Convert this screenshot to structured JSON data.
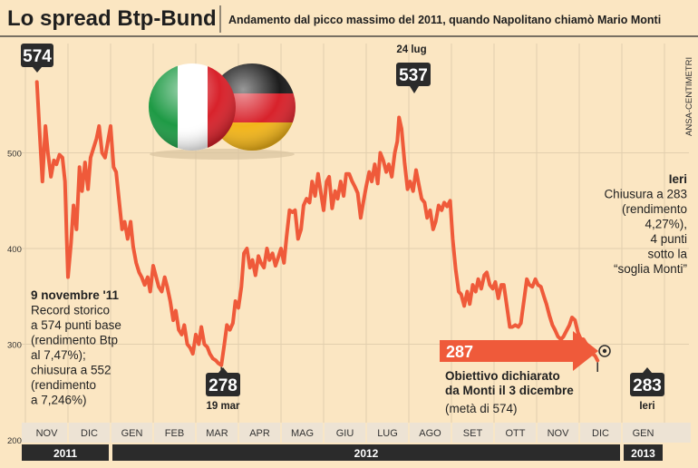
{
  "header": {
    "title": "Lo spread Btp-Bund",
    "subtitle": "Andamento dal picco massimo del 2011, quando Napolitano chiamò Mario Monti",
    "credit": "ANSA-CENTIMETRI"
  },
  "colors": {
    "background": "#fbe6c2",
    "line": "#ef5a3a",
    "dark": "#2b2b2b",
    "axis_band": "#ede3d4",
    "grid": "#e2cfae",
    "arrow": "#ef5a3a",
    "flag_italy_green": "#1e9a45",
    "flag_italy_white": "#ffffff",
    "flag_italy_red": "#d8222b",
    "flag_germany_black": "#1c1c1c",
    "flag_germany_red": "#d8222b",
    "flag_germany_gold": "#f2b51a"
  },
  "callouts": {
    "peak_value": "574",
    "july_date": "24 lug",
    "july_value": "537",
    "march_value": "278",
    "march_date": "19 mar",
    "target_value": "287",
    "last_value": "283",
    "last_label": "Ieri"
  },
  "annotations": {
    "nov9": {
      "heading": "9 novembre '11",
      "lines": [
        "Record storico",
        "a 574 punti base",
        "(rendimento Btp",
        "al 7,47%);",
        "chiusura a 552",
        "(rendimento",
        "a 7,246%)"
      ]
    },
    "ieri": {
      "heading": "Ieri",
      "lines": [
        "Chiusura a 283",
        "(rendimento",
        "4,27%),",
        "4 punti",
        "sotto la",
        "“soglia Monti”"
      ]
    },
    "target": {
      "lines": [
        "Obiettivo dichiarato",
        "da Monti il 3 dicembre"
      ],
      "note": "(metà di 574)"
    }
  },
  "chart_data": {
    "type": "line",
    "title": "Lo spread Btp-Bund",
    "subtitle": "Andamento dal picco massimo del 2011, quando Napolitano chiamò Mario Monti",
    "ylabel": "",
    "xlabel": "",
    "ylim": [
      200,
      600
    ],
    "yticks": [
      300,
      400,
      500
    ],
    "y_tick_labels": [
      "300",
      "400",
      "500"
    ],
    "y_floor_label": "200",
    "month_labels": [
      "NOV",
      "DIC",
      "GEN",
      "FEB",
      "MAR",
      "APR",
      "MAG",
      "GIU",
      "LUG",
      "AGO",
      "SET",
      "OTT",
      "NOV",
      "DIC",
      "GEN"
    ],
    "years": [
      {
        "label": "2011",
        "from_month": 0,
        "to_month": 2
      },
      {
        "label": "2012",
        "from_month": 2,
        "to_month": 14
      },
      {
        "label": "2013",
        "from_month": 14,
        "to_month": 15
      }
    ],
    "x_unit": "months since 1 Nov 2011",
    "reference_line": {
      "value": 287,
      "label": "287"
    },
    "highlights": [
      {
        "x": 0.27,
        "y": 574,
        "label": "574"
      },
      {
        "x": 4.6,
        "y": 278,
        "label": "278",
        "date": "19 mar"
      },
      {
        "x": 8.77,
        "y": 537,
        "label": "537",
        "date": "24 lug"
      },
      {
        "x": 13.0,
        "y": 305,
        "label": "target"
      },
      {
        "x": 13.55,
        "y": 283,
        "label": "283"
      }
    ],
    "series": [
      {
        "points": [
          [
            0.27,
            574
          ],
          [
            0.33,
            525
          ],
          [
            0.4,
            470
          ],
          [
            0.47,
            528
          ],
          [
            0.53,
            500
          ],
          [
            0.6,
            475
          ],
          [
            0.67,
            492
          ],
          [
            0.73,
            488
          ],
          [
            0.8,
            498
          ],
          [
            0.87,
            495
          ],
          [
            0.93,
            470
          ],
          [
            0.97,
            410
          ],
          [
            1.0,
            370
          ],
          [
            1.07,
            405
          ],
          [
            1.13,
            445
          ],
          [
            1.2,
            420
          ],
          [
            1.27,
            485
          ],
          [
            1.33,
            460
          ],
          [
            1.4,
            490
          ],
          [
            1.47,
            462
          ],
          [
            1.53,
            495
          ],
          [
            1.6,
            505
          ],
          [
            1.67,
            515
          ],
          [
            1.73,
            528
          ],
          [
            1.8,
            500
          ],
          [
            1.87,
            495
          ],
          [
            1.93,
            510
          ],
          [
            2.0,
            528
          ],
          [
            2.07,
            485
          ],
          [
            2.13,
            480
          ],
          [
            2.2,
            450
          ],
          [
            2.27,
            420
          ],
          [
            2.33,
            428
          ],
          [
            2.4,
            410
          ],
          [
            2.47,
            428
          ],
          [
            2.53,
            402
          ],
          [
            2.6,
            385
          ],
          [
            2.67,
            375
          ],
          [
            2.73,
            370
          ],
          [
            2.8,
            362
          ],
          [
            2.87,
            370
          ],
          [
            2.93,
            355
          ],
          [
            3.0,
            382
          ],
          [
            3.07,
            370
          ],
          [
            3.13,
            360
          ],
          [
            3.2,
            355
          ],
          [
            3.27,
            370
          ],
          [
            3.33,
            360
          ],
          [
            3.4,
            345
          ],
          [
            3.47,
            325
          ],
          [
            3.53,
            335
          ],
          [
            3.6,
            315
          ],
          [
            3.67,
            310
          ],
          [
            3.73,
            320
          ],
          [
            3.8,
            300
          ],
          [
            3.87,
            296
          ],
          [
            3.93,
            290
          ],
          [
            4.0,
            310
          ],
          [
            4.07,
            300
          ],
          [
            4.13,
            318
          ],
          [
            4.2,
            300
          ],
          [
            4.27,
            297
          ],
          [
            4.33,
            290
          ],
          [
            4.4,
            285
          ],
          [
            4.47,
            283
          ],
          [
            4.53,
            280
          ],
          [
            4.6,
            278
          ],
          [
            4.67,
            300
          ],
          [
            4.73,
            320
          ],
          [
            4.8,
            315
          ],
          [
            4.87,
            322
          ],
          [
            4.93,
            345
          ],
          [
            5.0,
            338
          ],
          [
            5.07,
            360
          ],
          [
            5.13,
            395
          ],
          [
            5.2,
            400
          ],
          [
            5.27,
            380
          ],
          [
            5.33,
            388
          ],
          [
            5.4,
            372
          ],
          [
            5.47,
            392
          ],
          [
            5.53,
            385
          ],
          [
            5.6,
            380
          ],
          [
            5.67,
            400
          ],
          [
            5.73,
            388
          ],
          [
            5.8,
            395
          ],
          [
            5.87,
            382
          ],
          [
            5.93,
            390
          ],
          [
            6.0,
            400
          ],
          [
            6.07,
            385
          ],
          [
            6.13,
            412
          ],
          [
            6.2,
            440
          ],
          [
            6.27,
            438
          ],
          [
            6.33,
            440
          ],
          [
            6.4,
            410
          ],
          [
            6.47,
            420
          ],
          [
            6.53,
            445
          ],
          [
            6.6,
            452
          ],
          [
            6.67,
            448
          ],
          [
            6.73,
            470
          ],
          [
            6.8,
            455
          ],
          [
            6.87,
            478
          ],
          [
            6.93,
            460
          ],
          [
            7.0,
            440
          ],
          [
            7.07,
            470
          ],
          [
            7.13,
            475
          ],
          [
            7.2,
            442
          ],
          [
            7.27,
            460
          ],
          [
            7.33,
            452
          ],
          [
            7.4,
            470
          ],
          [
            7.47,
            455
          ],
          [
            7.53,
            478
          ],
          [
            7.6,
            478
          ],
          [
            7.67,
            470
          ],
          [
            7.73,
            465
          ],
          [
            7.8,
            458
          ],
          [
            7.87,
            432
          ],
          [
            7.93,
            448
          ],
          [
            8.0,
            465
          ],
          [
            8.07,
            480
          ],
          [
            8.13,
            470
          ],
          [
            8.2,
            488
          ],
          [
            8.27,
            468
          ],
          [
            8.33,
            500
          ],
          [
            8.4,
            492
          ],
          [
            8.47,
            480
          ],
          [
            8.53,
            488
          ],
          [
            8.6,
            475
          ],
          [
            8.67,
            500
          ],
          [
            8.73,
            512
          ],
          [
            8.77,
            537
          ],
          [
            8.83,
            525
          ],
          [
            8.9,
            490
          ],
          [
            8.97,
            462
          ],
          [
            9.03,
            470
          ],
          [
            9.1,
            460
          ],
          [
            9.17,
            482
          ],
          [
            9.23,
            468
          ],
          [
            9.3,
            452
          ],
          [
            9.37,
            448
          ],
          [
            9.43,
            432
          ],
          [
            9.5,
            440
          ],
          [
            9.57,
            420
          ],
          [
            9.63,
            428
          ],
          [
            9.7,
            445
          ],
          [
            9.77,
            440
          ],
          [
            9.83,
            448
          ],
          [
            9.9,
            444
          ],
          [
            9.97,
            450
          ],
          [
            10.03,
            410
          ],
          [
            10.1,
            378
          ],
          [
            10.17,
            355
          ],
          [
            10.23,
            352
          ],
          [
            10.3,
            340
          ],
          [
            10.37,
            355
          ],
          [
            10.43,
            342
          ],
          [
            10.5,
            362
          ],
          [
            10.57,
            355
          ],
          [
            10.63,
            368
          ],
          [
            10.7,
            358
          ],
          [
            10.77,
            372
          ],
          [
            10.83,
            375
          ],
          [
            10.9,
            362
          ],
          [
            10.97,
            358
          ],
          [
            11.03,
            365
          ],
          [
            11.1,
            348
          ],
          [
            11.17,
            362
          ],
          [
            11.23,
            362
          ],
          [
            11.3,
            340
          ],
          [
            11.37,
            318
          ],
          [
            11.43,
            318
          ],
          [
            11.5,
            320
          ],
          [
            11.57,
            318
          ],
          [
            11.63,
            322
          ],
          [
            11.7,
            345
          ],
          [
            11.77,
            368
          ],
          [
            11.83,
            362
          ],
          [
            11.9,
            360
          ],
          [
            11.97,
            368
          ],
          [
            12.03,
            362
          ],
          [
            12.1,
            360
          ],
          [
            12.17,
            350
          ],
          [
            12.23,
            342
          ],
          [
            12.3,
            330
          ],
          [
            12.37,
            320
          ],
          [
            12.43,
            315
          ],
          [
            12.5,
            308
          ],
          [
            12.57,
            305
          ],
          [
            12.63,
            308
          ],
          [
            12.7,
            314
          ],
          [
            12.77,
            320
          ],
          [
            12.83,
            328
          ],
          [
            12.9,
            325
          ],
          [
            12.97,
            312
          ],
          [
            13.03,
            306
          ],
          [
            13.1,
            305
          ],
          [
            13.17,
            300
          ],
          [
            13.23,
            296
          ],
          [
            13.3,
            290
          ],
          [
            13.37,
            288
          ],
          [
            13.43,
            283
          ]
        ]
      }
    ]
  }
}
